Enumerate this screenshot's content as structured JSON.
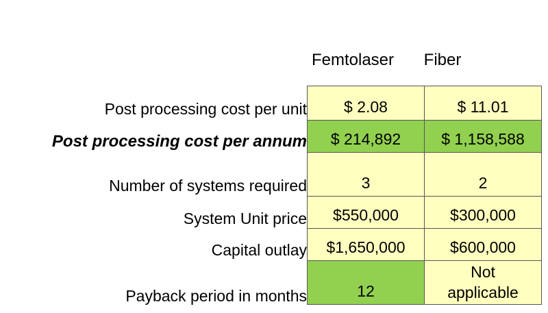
{
  "columns": [
    "Femtolaser",
    "Fiber"
  ],
  "rows": [
    {
      "label": "Post processing cost per unit",
      "values": [
        "$ 2.08",
        "$ 11.01"
      ],
      "bold": false
    },
    {
      "label": "Post processing cost per annum",
      "values": [
        "$ 214,892",
        "$ 1,158,588"
      ],
      "bold": true
    },
    {
      "label": "Number of systems required",
      "values": [
        "3",
        "2"
      ],
      "bold": false
    },
    {
      "label": "System Unit price",
      "values": [
        "$550,000",
        "$300,000"
      ],
      "bold": false
    },
    {
      "label": "Capital outlay",
      "values": [
        "$1,650,000",
        "$600,000"
      ],
      "bold": false
    },
    {
      "label": "Payback period in months",
      "values": [
        "12",
        "Not applicable"
      ],
      "bold": false
    }
  ],
  "colors": {
    "highlight": "#92d050",
    "cell": "#ffffc0"
  }
}
